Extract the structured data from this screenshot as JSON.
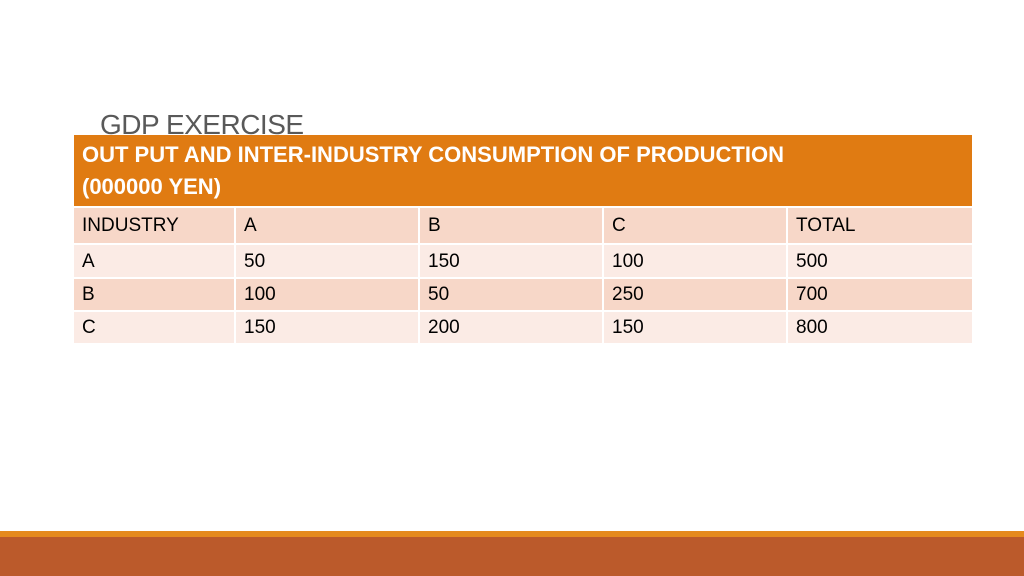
{
  "slide": {
    "title": "GDP EXERCISE"
  },
  "table": {
    "header_line1": "OUT PUT AND INTER-INDUSTRY CONSUMPTION OF PRODUCTION",
    "header_line2": "(000000 YEN)",
    "columns": [
      "INDUSTRY",
      "A",
      "B",
      "C",
      "TOTAL"
    ],
    "rows": [
      [
        "A",
        "50",
        "150",
        "100",
        "500"
      ],
      [
        "B",
        "100",
        "50",
        "250",
        "700"
      ],
      [
        "C",
        "150",
        "200",
        "150",
        "800"
      ]
    ]
  },
  "colors": {
    "header_bg": "#e07b12",
    "row_dark": "#f7d7c8",
    "row_light": "#fbebe5",
    "band_thin": "#e58a1e",
    "band_thick": "#bb5a2b",
    "title_text": "#595959"
  }
}
